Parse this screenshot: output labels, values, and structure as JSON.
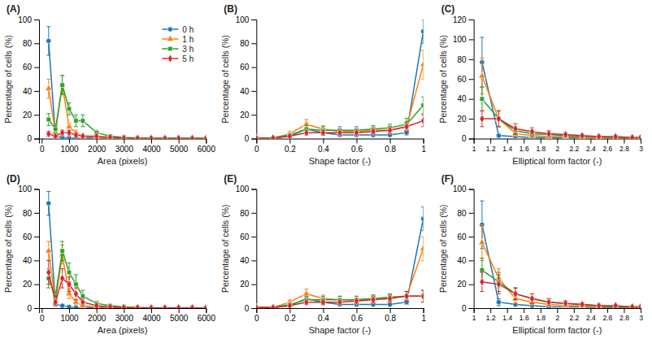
{
  "chart_data": [
    {
      "type": "line",
      "title": "(A)",
      "xlabel": "Area (pixels)",
      "ylabel": "Percentage of cells (%)",
      "x": [
        250,
        500,
        750,
        1000,
        1250,
        1500,
        2000,
        2500,
        3000,
        3500,
        4000,
        4500,
        5000,
        5500,
        6000
      ],
      "xlim": [
        -100,
        6000
      ],
      "ylim": [
        0,
        100
      ],
      "xticks": [
        0,
        1000,
        2000,
        3000,
        4000,
        5000,
        6000
      ],
      "yticks": [
        0,
        20,
        40,
        60,
        80,
        100
      ],
      "grid": false,
      "legend": "upper right",
      "series": [
        {
          "name": "0 h",
          "marker": "circle",
          "values": [
            82,
            2,
            1,
            0.5,
            0.5,
            0.5,
            0.3,
            0.2,
            0.2,
            0.2,
            0.2,
            0.2,
            0.2,
            0.2,
            0.2
          ],
          "errors": [
            12,
            1,
            1,
            0.5,
            0.5,
            0.5,
            0.3,
            0.2,
            0.2,
            0.2,
            0.2,
            0.2,
            0.2,
            0.2,
            0.2
          ]
        },
        {
          "name": "1 h",
          "marker": "triangle",
          "values": [
            42,
            5,
            45,
            10,
            5,
            2,
            1,
            0.5,
            0.3,
            0.2,
            0.2,
            0.2,
            0.2,
            0.2,
            0.2
          ],
          "errors": [
            8,
            2,
            8,
            3,
            2,
            1,
            0.5,
            0.3,
            0.2,
            0.2,
            0.2,
            0.2,
            0.2,
            0.2,
            0.2
          ]
        },
        {
          "name": "3 h",
          "marker": "square",
          "values": [
            16,
            8,
            45,
            25,
            15,
            15,
            5,
            2,
            1,
            0.5,
            0.3,
            0.2,
            0.2,
            0.2,
            0.2
          ],
          "errors": [
            5,
            3,
            8,
            5,
            5,
            5,
            2,
            1,
            0.5,
            0.3,
            0.2,
            0.2,
            0.2,
            0.2,
            0.2
          ]
        },
        {
          "name": "5 h",
          "marker": "diamond",
          "values": [
            4,
            2,
            5,
            5,
            3,
            2,
            2,
            1,
            0.5,
            0.3,
            0.2,
            0.2,
            0.2,
            0.2,
            0.2
          ],
          "errors": [
            2,
            1,
            2,
            2,
            1,
            1,
            1,
            0.5,
            0.3,
            0.2,
            0.2,
            0.2,
            0.2,
            0.2,
            0.2
          ]
        }
      ]
    },
    {
      "type": "line",
      "title": "(B)",
      "xlabel": "Shape factor (-)",
      "ylabel": "Percentage of cells (%)",
      "x": [
        0,
        0.1,
        0.2,
        0.3,
        0.4,
        0.5,
        0.6,
        0.7,
        0.8,
        0.9,
        1.0
      ],
      "xlim": [
        0,
        1.0
      ],
      "ylim": [
        0,
        100
      ],
      "xticks": [
        0,
        0.2,
        0.4,
        0.6,
        0.8,
        1
      ],
      "yticks": [
        0,
        20,
        40,
        60,
        80,
        100
      ],
      "grid": false,
      "series": [
        {
          "name": "0 h",
          "marker": "circle",
          "values": [
            0.5,
            0.5,
            2,
            8,
            5,
            3,
            3,
            3,
            3,
            5,
            90
          ],
          "errors": [
            0.3,
            0.3,
            1,
            3,
            2,
            1,
            1,
            1,
            1,
            2,
            10
          ]
        },
        {
          "name": "1 h",
          "marker": "triangle",
          "values": [
            0.5,
            0.5,
            4,
            12,
            8,
            6,
            6,
            7,
            7,
            10,
            62
          ],
          "errors": [
            0.3,
            0.3,
            2,
            4,
            3,
            2,
            2,
            3,
            3,
            4,
            12
          ]
        },
        {
          "name": "3 h",
          "marker": "square",
          "values": [
            0.5,
            0.5,
            3,
            8,
            7,
            7,
            7,
            8,
            9,
            12,
            28
          ],
          "errors": [
            0.3,
            0.3,
            1,
            3,
            3,
            3,
            3,
            3,
            3,
            5,
            7
          ]
        },
        {
          "name": "5 h",
          "marker": "diamond",
          "values": [
            0.5,
            0.5,
            2,
            5,
            5,
            5,
            5,
            6,
            7,
            10,
            15
          ],
          "errors": [
            0.3,
            0.3,
            1,
            2,
            2,
            2,
            2,
            2,
            3,
            4,
            5
          ]
        }
      ]
    },
    {
      "type": "line",
      "title": "(C)",
      "xlabel": "Elliptical form factor (-)",
      "ylabel": "Percentage of cells (%)",
      "x": [
        1.1,
        1.3,
        1.5,
        1.7,
        1.9,
        2.1,
        2.3,
        2.5,
        2.7,
        2.9,
        3.0
      ],
      "xlim": [
        1.0,
        3.0
      ],
      "ylim": [
        0,
        120
      ],
      "xticks": [
        1,
        1.2,
        1.4,
        1.6,
        1.8,
        2,
        2.2,
        2.4,
        2.6,
        2.8,
        3
      ],
      "yticks": [
        0,
        20,
        40,
        60,
        80,
        100,
        120
      ],
      "grid": false,
      "series": [
        {
          "name": "0 h",
          "marker": "circle",
          "values": [
            77,
            3,
            2,
            1,
            1,
            1,
            1,
            0.5,
            0.5,
            0.5,
            0.5
          ],
          "errors": [
            25,
            2,
            1,
            0.5,
            0.5,
            0.5,
            0.5,
            0.3,
            0.3,
            0.3,
            0.3
          ]
        },
        {
          "name": "1 h",
          "marker": "triangle",
          "values": [
            63,
            20,
            5,
            3,
            2,
            2,
            1,
            1,
            0.5,
            0.5,
            0.5
          ],
          "errors": [
            18,
            8,
            3,
            2,
            1,
            1,
            0.5,
            0.5,
            0.3,
            0.3,
            0.3
          ]
        },
        {
          "name": "3 h",
          "marker": "square",
          "values": [
            40,
            20,
            8,
            5,
            4,
            3,
            2,
            2,
            1,
            1,
            1
          ],
          "errors": [
            12,
            8,
            4,
            3,
            2,
            2,
            1,
            1,
            0.5,
            0.5,
            0.5
          ]
        },
        {
          "name": "5 h",
          "marker": "diamond",
          "values": [
            20,
            20,
            10,
            7,
            5,
            4,
            3,
            2,
            2,
            1,
            1
          ],
          "errors": [
            8,
            8,
            5,
            4,
            3,
            2,
            1,
            1,
            1,
            0.5,
            0.5
          ]
        }
      ]
    },
    {
      "type": "line",
      "title": "(D)",
      "xlabel": "Area (pixels)",
      "ylabel": "Percentage of cells (%)",
      "x": [
        250,
        500,
        750,
        1000,
        1250,
        1500,
        2000,
        2500,
        3000,
        3500,
        4000,
        4500,
        5000,
        5500,
        6000
      ],
      "xlim": [
        -100,
        6000
      ],
      "ylim": [
        0,
        100
      ],
      "xticks": [
        0,
        1000,
        2000,
        3000,
        4000,
        5000,
        6000
      ],
      "yticks": [
        0,
        20,
        40,
        60,
        80,
        100
      ],
      "grid": false,
      "series": [
        {
          "name": "0 h",
          "marker": "circle",
          "values": [
            88,
            3,
            2,
            1,
            0.5,
            0.5,
            0.3,
            0.2,
            0.2,
            0.2,
            0.2,
            0.2,
            0.2,
            0.2,
            0.2
          ],
          "errors": [
            10,
            1,
            1,
            0.5,
            0.5,
            0.5,
            0.3,
            0.2,
            0.2,
            0.2,
            0.2,
            0.2,
            0.2,
            0.2,
            0.2
          ]
        },
        {
          "name": "1 h",
          "marker": "triangle",
          "values": [
            48,
            5,
            45,
            12,
            5,
            2,
            1,
            0.5,
            0.3,
            0.2,
            0.2,
            0.2,
            0.2,
            0.2,
            0.2
          ],
          "errors": [
            8,
            2,
            8,
            4,
            2,
            1,
            0.5,
            0.3,
            0.2,
            0.2,
            0.2,
            0.2,
            0.2,
            0.2,
            0.2
          ]
        },
        {
          "name": "3 h",
          "marker": "square",
          "values": [
            25,
            10,
            48,
            30,
            20,
            10,
            4,
            2,
            1,
            0.5,
            0.3,
            0.2,
            0.2,
            0.2,
            0.2
          ],
          "errors": [
            8,
            3,
            8,
            8,
            8,
            5,
            2,
            1,
            0.5,
            0.3,
            0.2,
            0.2,
            0.2,
            0.2,
            0.2
          ]
        },
        {
          "name": "5 h",
          "marker": "diamond",
          "values": [
            30,
            5,
            25,
            20,
            12,
            5,
            2,
            1,
            0.5,
            0.3,
            0.2,
            0.2,
            0.2,
            0.2,
            0.2
          ],
          "errors": [
            10,
            2,
            8,
            6,
            5,
            3,
            1,
            0.5,
            0.3,
            0.2,
            0.2,
            0.2,
            0.2,
            0.2,
            0.2
          ]
        }
      ]
    },
    {
      "type": "line",
      "title": "(E)",
      "xlabel": "Shape factor (-)",
      "ylabel": "Percentage of cells (%)",
      "x": [
        0,
        0.1,
        0.2,
        0.3,
        0.4,
        0.5,
        0.6,
        0.7,
        0.8,
        0.9,
        1.0
      ],
      "xlim": [
        0,
        1.0
      ],
      "ylim": [
        0,
        100
      ],
      "xticks": [
        0,
        0.2,
        0.4,
        0.6,
        0.8,
        1
      ],
      "yticks": [
        0,
        20,
        40,
        60,
        80,
        100
      ],
      "grid": false,
      "series": [
        {
          "name": "0 h",
          "marker": "circle",
          "values": [
            0.5,
            0.5,
            2,
            8,
            5,
            3,
            3,
            3,
            3,
            5,
            75
          ],
          "errors": [
            0.3,
            0.3,
            1,
            3,
            2,
            1,
            1,
            1,
            1,
            2,
            10
          ]
        },
        {
          "name": "1 h",
          "marker": "triangle",
          "values": [
            0.5,
            0.5,
            5,
            12,
            8,
            7,
            7,
            8,
            9,
            10,
            50
          ],
          "errors": [
            0.3,
            0.3,
            2,
            4,
            3,
            3,
            3,
            3,
            3,
            4,
            10
          ]
        },
        {
          "name": "3 h",
          "marker": "square",
          "values": [
            0.5,
            0.5,
            3,
            7,
            7,
            7,
            7,
            8,
            9,
            10,
            10
          ],
          "errors": [
            0.3,
            0.3,
            1,
            3,
            3,
            3,
            3,
            3,
            3,
            4,
            5
          ]
        },
        {
          "name": "5 h",
          "marker": "diamond",
          "values": [
            0.5,
            0.5,
            2,
            5,
            5,
            5,
            6,
            7,
            8,
            10,
            10
          ],
          "errors": [
            0.3,
            0.3,
            1,
            2,
            2,
            2,
            2,
            3,
            3,
            4,
            5
          ]
        }
      ]
    },
    {
      "type": "line",
      "title": "(F)",
      "xlabel": "Elliptical form factor (-)",
      "ylabel": "Percentage of cells (%)",
      "x": [
        1.1,
        1.3,
        1.5,
        1.7,
        1.9,
        2.1,
        2.3,
        2.5,
        2.7,
        2.9,
        3.0
      ],
      "xlim": [
        1.0,
        3.0
      ],
      "ylim": [
        0,
        100
      ],
      "xticks": [
        1,
        1.2,
        1.4,
        1.6,
        1.8,
        2,
        2.2,
        2.4,
        2.6,
        2.8,
        3
      ],
      "yticks": [
        0,
        20,
        40,
        60,
        80,
        100
      ],
      "grid": false,
      "series": [
        {
          "name": "0 h",
          "marker": "circle",
          "values": [
            70,
            5,
            3,
            2,
            1,
            1,
            1,
            0.5,
            0.5,
            0.5,
            0.5
          ],
          "errors": [
            20,
            3,
            1,
            0.5,
            0.5,
            0.5,
            0.5,
            0.3,
            0.3,
            0.3,
            0.3
          ]
        },
        {
          "name": "1 h",
          "marker": "triangle",
          "values": [
            55,
            25,
            8,
            5,
            3,
            2,
            2,
            1,
            1,
            0.5,
            0.5
          ],
          "errors": [
            15,
            8,
            4,
            3,
            2,
            1,
            1,
            0.5,
            0.5,
            0.3,
            0.3
          ]
        },
        {
          "name": "3 h",
          "marker": "square",
          "values": [
            32,
            22,
            12,
            8,
            5,
            4,
            3,
            2,
            1,
            1,
            1
          ],
          "errors": [
            10,
            8,
            5,
            4,
            3,
            2,
            1,
            1,
            0.5,
            0.5,
            0.5
          ]
        },
        {
          "name": "5 h",
          "marker": "diamond",
          "values": [
            22,
            20,
            12,
            8,
            5,
            4,
            3,
            2,
            2,
            1,
            1
          ],
          "errors": [
            8,
            8,
            5,
            4,
            3,
            2,
            1,
            1,
            1,
            0.5,
            0.5
          ]
        }
      ]
    }
  ]
}
